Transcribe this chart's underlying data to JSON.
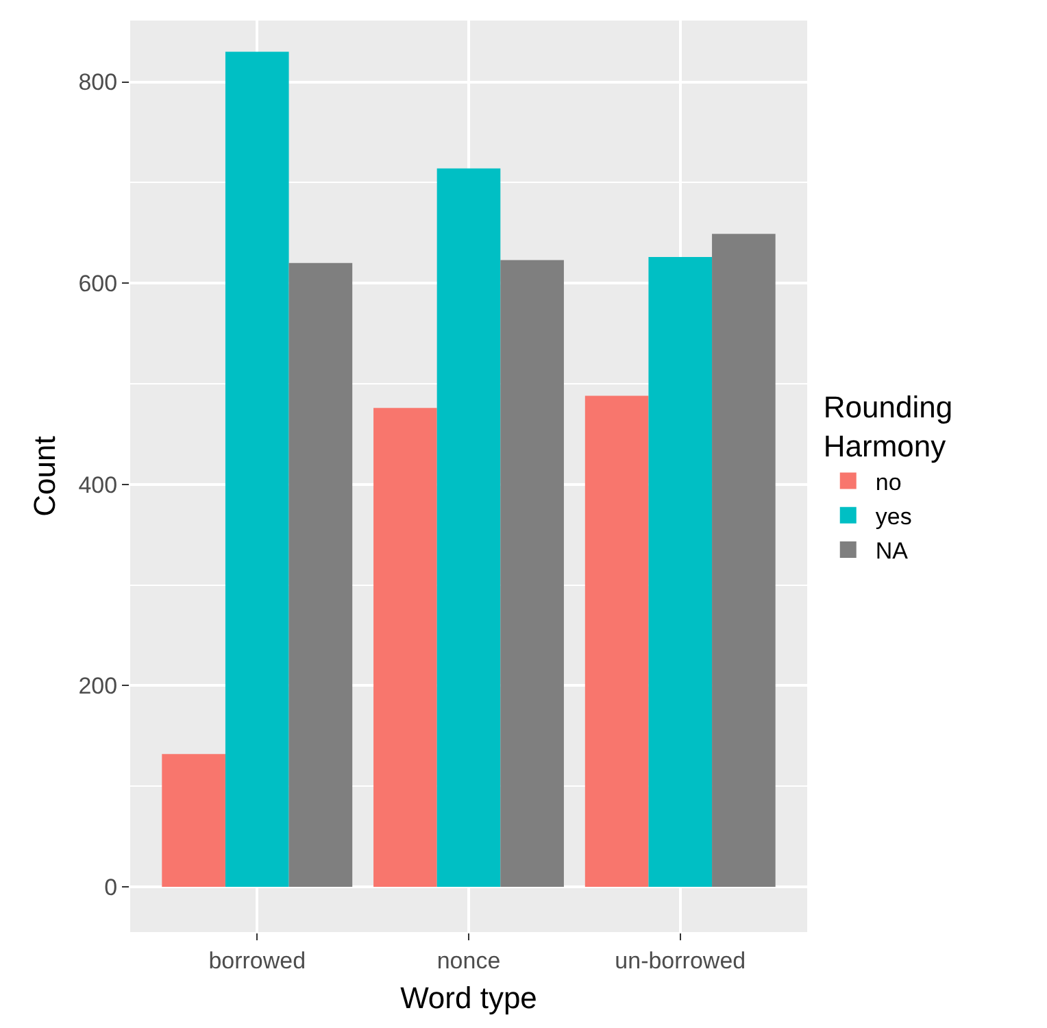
{
  "chart_data": {
    "type": "bar",
    "xlabel": "Word type",
    "ylabel": "Count",
    "legend_title": "Rounding\nHarmony",
    "categories": [
      "borrowed",
      "nonce",
      "un-borrowed"
    ],
    "series": [
      {
        "name": "no",
        "color": "#f8766d",
        "values": [
          132,
          476,
          488
        ]
      },
      {
        "name": "yes",
        "color": "#00bfc4",
        "values": [
          830,
          714,
          626
        ]
      },
      {
        "name": "NA",
        "color": "#7f7f7f",
        "values": [
          620,
          623,
          649
        ]
      }
    ],
    "ylim": [
      -45,
      861
    ],
    "yticks": [
      0,
      200,
      400,
      600,
      800
    ],
    "grid": true,
    "legend": "right"
  }
}
